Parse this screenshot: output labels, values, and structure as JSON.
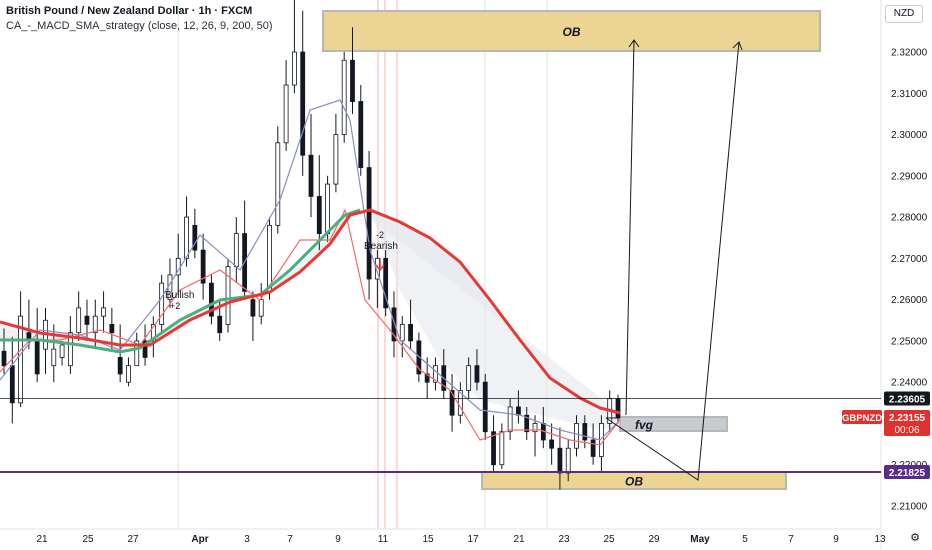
{
  "header": {
    "title": "British Pound / New Zealand Dollar · 1h · FXCM",
    "indicator": "CA_-_MACD_SMA_strategy (close, 12, 26, 9, 200, 50)"
  },
  "currency": "NZD",
  "settings_icon": "gear-icon",
  "colors": {
    "up": "#26a69a",
    "down": "#ef5350",
    "candle": "#131722",
    "ma_long": "#e53935",
    "ma_short": "#4caf7d",
    "ma_blue": "#8a8fbf",
    "ob_fill": "#ecd592",
    "ob_border": "#b7b7b7",
    "purple": "#5b2b8c"
  },
  "chart_data": {
    "type": "candlestick",
    "symbol": "GBPNZD",
    "y_axis": {
      "min": 2.205,
      "max": 2.335,
      "ticks": [
        "2.32000",
        "2.31000",
        "2.30000",
        "2.29000",
        "2.28000",
        "2.27000",
        "2.26000",
        "2.25000",
        "2.24000",
        "2.23000",
        "2.22000",
        "2.21000"
      ]
    },
    "x_axis": {
      "ticks": [
        "21",
        "25",
        "27",
        "Apr",
        "3",
        "7",
        "9",
        "11",
        "15",
        "17",
        "21",
        "23",
        "25",
        "29",
        "May",
        "5",
        "7",
        "9",
        "13"
      ]
    },
    "price_labels": [
      {
        "value": 2.23605,
        "text": "2.23605",
        "style": "dark"
      },
      {
        "value": 2.23155,
        "text": "2.23155",
        "sub": "00:06",
        "style": "red"
      },
      {
        "value": 2.21825,
        "text": "2.21825",
        "style": "purple"
      }
    ],
    "symbol_label": "GBPNZD",
    "zones": [
      {
        "label": "OB",
        "from": "Apr 8",
        "to": "May 10",
        "y_low": 2.3195,
        "y_high": 2.3325
      },
      {
        "label": "fvg",
        "from": "Apr 26",
        "to": "May 2",
        "y_low": 2.2295,
        "y_high": 2.2315
      },
      {
        "label": "OB",
        "from": "Apr 17",
        "to": "May 7",
        "y_low": 2.214,
        "y_high": 2.2165
      }
    ],
    "annotations": [
      {
        "text": "Bullish",
        "sub": "+2"
      },
      {
        "text": "-2",
        "sub": "Bearish"
      }
    ],
    "horizontal_levels": [
      2.23605,
      2.21825
    ],
    "candles_ohlc_samples": [
      [
        2.2475,
        2.253,
        2.242,
        2.244
      ],
      [
        2.244,
        2.251,
        2.23,
        2.235
      ],
      [
        2.235,
        2.262,
        2.234,
        2.256
      ],
      [
        2.252,
        2.26,
        2.248,
        2.25
      ],
      [
        2.25,
        2.258,
        2.24,
        2.242
      ],
      [
        2.248,
        2.258,
        2.242,
        2.255
      ],
      [
        2.244,
        2.254,
        2.24,
        2.248
      ],
      [
        2.246,
        2.25,
        2.244,
        2.249
      ],
      [
        2.244,
        2.256,
        2.242,
        2.252
      ],
      [
        2.252,
        2.262,
        2.25,
        2.258
      ],
      [
        2.256,
        2.26,
        2.25,
        2.254
      ],
      [
        2.252,
        2.26,
        2.248,
        2.256
      ],
      [
        2.256,
        2.262,
        2.252,
        2.258
      ],
      [
        2.254,
        2.258,
        2.248,
        2.252
      ],
      [
        2.246,
        2.254,
        2.24,
        2.242
      ],
      [
        2.24,
        2.246,
        2.239,
        2.244
      ],
      [
        2.244,
        2.252,
        2.244,
        2.25
      ],
      [
        2.25,
        2.254,
        2.244,
        2.246
      ],
      [
        2.25,
        2.256,
        2.246,
        2.254
      ],
      [
        2.254,
        2.266,
        2.252,
        2.264
      ],
      [
        2.26,
        2.27,
        2.258,
        2.266
      ],
      [
        2.266,
        2.276,
        2.262,
        2.27
      ],
      [
        2.27,
        2.285,
        2.268,
        2.28
      ],
      [
        2.278,
        2.282,
        2.27,
        2.272
      ],
      [
        2.272,
        2.276,
        2.26,
        2.264
      ],
      [
        2.264,
        2.266,
        2.254,
        2.256
      ],
      [
        2.256,
        2.26,
        2.25,
        2.252
      ],
      [
        2.254,
        2.27,
        2.252,
        2.268
      ],
      [
        2.268,
        2.28,
        2.264,
        2.276
      ],
      [
        2.276,
        2.284,
        2.26,
        2.262
      ],
      [
        2.26,
        2.262,
        2.25,
        2.256
      ],
      [
        2.256,
        2.264,
        2.254,
        2.26
      ],
      [
        2.262,
        2.28,
        2.26,
        2.278
      ],
      [
        2.278,
        2.302,
        2.276,
        2.298
      ],
      [
        2.298,
        2.318,
        2.296,
        2.312
      ],
      [
        2.312,
        2.335,
        2.31,
        2.32
      ],
      [
        2.32,
        2.33,
        2.29,
        2.295
      ],
      [
        2.295,
        2.305,
        2.28,
        2.285
      ],
      [
        2.285,
        2.295,
        2.272,
        2.276
      ],
      [
        2.276,
        2.29,
        2.274,
        2.288
      ],
      [
        2.288,
        2.305,
        2.286,
        2.3
      ],
      [
        2.3,
        2.32,
        2.298,
        2.318
      ],
      [
        2.318,
        2.326,
        2.305,
        2.308
      ],
      [
        2.308,
        2.312,
        2.29,
        2.292
      ],
      [
        2.292,
        2.296,
        2.26,
        2.265
      ],
      [
        2.265,
        2.272,
        2.258,
        2.27
      ],
      [
        2.27,
        2.272,
        2.256,
        2.258
      ],
      [
        2.258,
        2.262,
        2.246,
        2.25
      ],
      [
        2.25,
        2.256,
        2.246,
        2.254
      ],
      [
        2.254,
        2.26,
        2.248,
        2.25
      ],
      [
        2.25,
        2.252,
        2.24,
        2.242
      ],
      [
        2.242,
        2.246,
        2.236,
        2.24
      ],
      [
        2.24,
        2.246,
        2.238,
        2.244
      ],
      [
        2.244,
        2.248,
        2.236,
        2.238
      ],
      [
        2.238,
        2.242,
        2.228,
        2.232
      ],
      [
        2.232,
        2.24,
        2.23,
        2.238
      ],
      [
        2.238,
        2.246,
        2.236,
        2.244
      ],
      [
        2.244,
        2.248,
        2.238,
        2.24
      ],
      [
        2.24,
        2.242,
        2.226,
        2.228
      ],
      [
        2.228,
        2.232,
        2.218,
        2.22
      ],
      [
        2.22,
        2.23,
        2.219,
        2.228
      ],
      [
        2.228,
        2.236,
        2.226,
        2.234
      ],
      [
        2.234,
        2.238,
        2.23,
        2.232
      ],
      [
        2.232,
        2.234,
        2.226,
        2.228
      ],
      [
        2.228,
        2.232,
        2.222,
        2.23
      ],
      [
        2.23,
        2.234,
        2.224,
        2.226
      ],
      [
        2.226,
        2.23,
        2.22,
        2.224
      ],
      [
        2.224,
        2.229,
        2.214,
        2.218
      ],
      [
        2.218,
        2.226,
        2.216,
        2.224
      ],
      [
        2.224,
        2.232,
        2.222,
        2.23
      ],
      [
        2.23,
        2.232,
        2.224,
        2.226
      ],
      [
        2.226,
        2.23,
        2.22,
        2.222
      ],
      [
        2.222,
        2.232,
        2.218,
        2.23
      ],
      [
        2.23,
        2.238,
        2.228,
        2.236
      ],
      [
        2.236,
        2.237,
        2.23,
        2.2315
      ]
    ]
  }
}
